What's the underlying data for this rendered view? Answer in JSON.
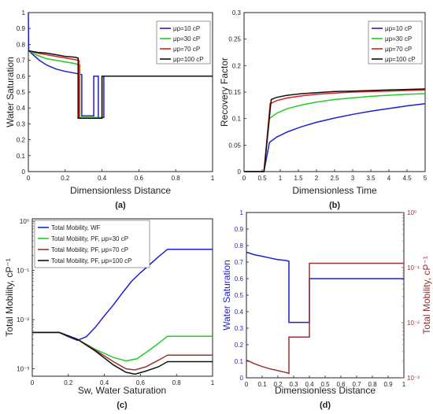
{
  "chart_data": [
    {
      "id": "a",
      "type": "line",
      "panel_label": "(a)",
      "xlabel": "Dimensionless Distance",
      "ylabel": "Water Saturation",
      "xlim": [
        0,
        1
      ],
      "ylim": [
        0,
        1
      ],
      "xticks": [
        "0",
        "0.2",
        "0.4",
        "0.6",
        "0.8",
        "1"
      ],
      "yticks": [
        "0",
        "0.1",
        "0.2",
        "0.3",
        "0.4",
        "0.5",
        "0.6",
        "0.7",
        "0.8",
        "0.9",
        "1"
      ],
      "legend": {
        "placement": "top-right"
      },
      "series": [
        {
          "name": "μp=10 cP",
          "color": "#1f1fd0",
          "points": [
            [
              0,
              1.0
            ],
            [
              0.002,
              0.76
            ],
            [
              0.02,
              0.74
            ],
            [
              0.06,
              0.7
            ],
            [
              0.1,
              0.67
            ],
            [
              0.15,
              0.645
            ],
            [
              0.2,
              0.63
            ],
            [
              0.25,
              0.62
            ],
            [
              0.29,
              0.61
            ],
            [
              0.29,
              0.35
            ],
            [
              0.355,
              0.35
            ],
            [
              0.355,
              0.6
            ],
            [
              0.38,
              0.6
            ],
            [
              0.38,
              0.34
            ],
            [
              0.41,
              0.34
            ],
            [
              0.41,
              0.6
            ],
            [
              1,
              0.6
            ]
          ]
        },
        {
          "name": "μp=30 cP",
          "color": "#22cc22",
          "points": [
            [
              0,
              0.76
            ],
            [
              0.05,
              0.73
            ],
            [
              0.1,
              0.71
            ],
            [
              0.15,
              0.7
            ],
            [
              0.2,
              0.69
            ],
            [
              0.25,
              0.68
            ],
            [
              0.28,
              0.67
            ],
            [
              0.28,
              0.34
            ],
            [
              0.4,
              0.34
            ],
            [
              0.4,
              0.6
            ],
            [
              1,
              0.6
            ]
          ]
        },
        {
          "name": "μp=70 cP",
          "color": "#dd2222",
          "points": [
            [
              0,
              0.76
            ],
            [
              0.05,
              0.745
            ],
            [
              0.1,
              0.735
            ],
            [
              0.15,
              0.725
            ],
            [
              0.2,
              0.715
            ],
            [
              0.25,
              0.705
            ],
            [
              0.275,
              0.7
            ],
            [
              0.275,
              0.335
            ],
            [
              0.4,
              0.335
            ],
            [
              0.4,
              0.6
            ],
            [
              1,
              0.6
            ]
          ]
        },
        {
          "name": "μp=100 cP",
          "color": "#111111",
          "points": [
            [
              0,
              0.76
            ],
            [
              0.05,
              0.75
            ],
            [
              0.1,
              0.745
            ],
            [
              0.15,
              0.735
            ],
            [
              0.2,
              0.725
            ],
            [
              0.25,
              0.72
            ],
            [
              0.27,
              0.715
            ],
            [
              0.27,
              0.335
            ],
            [
              0.4,
              0.335
            ],
            [
              0.4,
              0.6
            ],
            [
              1,
              0.6
            ]
          ]
        }
      ]
    },
    {
      "id": "b",
      "type": "line",
      "panel_label": "(b)",
      "xlabel": "Dimensionless Time",
      "ylabel": "Recovery Factor",
      "xlim": [
        0,
        5
      ],
      "ylim": [
        0,
        0.3
      ],
      "xticks": [
        "0",
        "0.5",
        "1",
        "1.5",
        "2",
        "2.5",
        "3",
        "3.5",
        "4",
        "4.5",
        "5"
      ],
      "yticks": [
        "0",
        "0.05",
        "0.1",
        "0.15",
        "0.2",
        "0.25",
        "0.3"
      ],
      "legend": {
        "placement": "top-right"
      },
      "series": [
        {
          "name": "μp=10 cP",
          "color": "#1f1fd0",
          "points": [
            [
              0,
              0
            ],
            [
              0.55,
              0
            ],
            [
              0.7,
              0.055
            ],
            [
              0.9,
              0.065
            ],
            [
              1.2,
              0.075
            ],
            [
              1.6,
              0.085
            ],
            [
              2,
              0.093
            ],
            [
              2.5,
              0.101
            ],
            [
              3,
              0.108
            ],
            [
              3.5,
              0.114
            ],
            [
              4,
              0.119
            ],
            [
              4.5,
              0.124
            ],
            [
              5,
              0.128
            ]
          ]
        },
        {
          "name": "μp=30 cP",
          "color": "#22cc22",
          "points": [
            [
              0,
              0
            ],
            [
              0.55,
              0
            ],
            [
              0.7,
              0.1
            ],
            [
              0.9,
              0.11
            ],
            [
              1.2,
              0.119
            ],
            [
              1.6,
              0.126
            ],
            [
              2,
              0.131
            ],
            [
              2.5,
              0.136
            ],
            [
              3,
              0.139
            ],
            [
              3.5,
              0.142
            ],
            [
              4,
              0.144
            ],
            [
              4.5,
              0.146
            ],
            [
              5,
              0.147
            ]
          ]
        },
        {
          "name": "μp=70 cP",
          "color": "#dd2222",
          "points": [
            [
              0,
              0
            ],
            [
              0.55,
              0
            ],
            [
              0.72,
              0.128
            ],
            [
              0.9,
              0.134
            ],
            [
              1.2,
              0.139
            ],
            [
              1.6,
              0.143
            ],
            [
              2,
              0.146
            ],
            [
              2.5,
              0.148
            ],
            [
              3,
              0.15
            ],
            [
              3.5,
              0.151
            ],
            [
              4,
              0.152
            ],
            [
              4.5,
              0.153
            ],
            [
              5,
              0.154
            ]
          ]
        },
        {
          "name": "μp=100 cP",
          "color": "#111111",
          "points": [
            [
              0,
              0
            ],
            [
              0.55,
              0
            ],
            [
              0.75,
              0.136
            ],
            [
              0.9,
              0.14
            ],
            [
              1.2,
              0.144
            ],
            [
              1.6,
              0.147
            ],
            [
              2,
              0.149
            ],
            [
              2.5,
              0.151
            ],
            [
              3,
              0.152
            ],
            [
              3.5,
              0.153
            ],
            [
              4,
              0.154
            ],
            [
              4.5,
              0.155
            ],
            [
              5,
              0.156
            ]
          ]
        }
      ]
    },
    {
      "id": "c",
      "type": "line",
      "panel_label": "(c)",
      "xlabel": "Sw, Water Saturation",
      "ylabel": "Total Mobility, cP⁻¹",
      "xlim": [
        0,
        1
      ],
      "yscale": "log",
      "ylog_range": [
        -3.15,
        0.05
      ],
      "xticks": [
        "0",
        "0.2",
        "0.4",
        "0.6",
        "0.8",
        "1"
      ],
      "yticks": [
        {
          "value": 0.001,
          "label": "10⁻³"
        },
        {
          "value": 0.01,
          "label": "10⁻²"
        },
        {
          "value": 0.1,
          "label": "10⁻¹"
        },
        {
          "value": 1,
          "label": "10⁰"
        }
      ],
      "legend": {
        "placement": "top-left"
      },
      "series": [
        {
          "name": "Total Mobility, WF",
          "color": "#1f1fd0",
          "points": [
            [
              0,
              0.0055
            ],
            [
              0.15,
              0.0055
            ],
            [
              0.2,
              0.0045
            ],
            [
              0.25,
              0.0038
            ],
            [
              0.3,
              0.0045
            ],
            [
              0.35,
              0.007
            ],
            [
              0.4,
              0.012
            ],
            [
              0.45,
              0.02
            ],
            [
              0.5,
              0.035
            ],
            [
              0.55,
              0.06
            ],
            [
              0.6,
              0.09
            ],
            [
              0.65,
              0.13
            ],
            [
              0.7,
              0.19
            ],
            [
              0.75,
              0.27
            ],
            [
              0.8,
              0.27
            ],
            [
              1,
              0.27
            ]
          ]
        },
        {
          "name": "Total Mobility, PF, μp=30 cP",
          "color": "#22cc22",
          "points": [
            [
              0,
              0.0055
            ],
            [
              0.15,
              0.0055
            ],
            [
              0.25,
              0.004
            ],
            [
              0.35,
              0.0025
            ],
            [
              0.45,
              0.0017
            ],
            [
              0.52,
              0.00145
            ],
            [
              0.58,
              0.0016
            ],
            [
              0.65,
              0.0024
            ],
            [
              0.7,
              0.0033
            ],
            [
              0.75,
              0.0046
            ],
            [
              1,
              0.0046
            ]
          ]
        },
        {
          "name": "Total Mobility, PF, μp=70 cP",
          "color": "#993333",
          "points": [
            [
              0,
              0.0055
            ],
            [
              0.15,
              0.0055
            ],
            [
              0.25,
              0.004
            ],
            [
              0.35,
              0.0024
            ],
            [
              0.45,
              0.0014
            ],
            [
              0.52,
              0.001
            ],
            [
              0.57,
              0.00095
            ],
            [
              0.63,
              0.0011
            ],
            [
              0.7,
              0.0015
            ],
            [
              0.75,
              0.0019
            ],
            [
              1,
              0.0019
            ]
          ]
        },
        {
          "name": "Total Mobility, PF, μp=100 cP",
          "color": "#111111",
          "points": [
            [
              0,
              0.0055
            ],
            [
              0.15,
              0.0055
            ],
            [
              0.25,
              0.004
            ],
            [
              0.35,
              0.0023
            ],
            [
              0.45,
              0.0012
            ],
            [
              0.52,
              0.00085
            ],
            [
              0.57,
              0.00078
            ],
            [
              0.63,
              0.0009
            ],
            [
              0.7,
              0.0011
            ],
            [
              0.75,
              0.0014
            ],
            [
              1,
              0.0014
            ]
          ]
        }
      ]
    },
    {
      "id": "d",
      "type": "line",
      "panel_label": "(d)",
      "xlabel": "Dimensionless Distance",
      "ylabel": "Water Saturation",
      "y2label": "Total Mobility, cP⁻¹",
      "xlim": [
        0,
        1
      ],
      "ylim": [
        0,
        1
      ],
      "y2scale": "log",
      "y2log_range": [
        -3,
        0
      ],
      "xticks": [
        "0",
        "0.1",
        "0.2",
        "0.3",
        "0.4",
        "0.5",
        "0.6",
        "0.7",
        "0.8",
        "0.9",
        "1"
      ],
      "yticks": [
        "0",
        "0.1",
        "0.2",
        "0.3",
        "0.4",
        "0.5",
        "0.6",
        "0.7",
        "0.8",
        "0.9",
        "1"
      ],
      "y2ticks": [
        {
          "value": 0.001,
          "label": "10⁻³"
        },
        {
          "value": 0.01,
          "label": "10⁻²"
        },
        {
          "value": 0.1,
          "label": "10⁻¹"
        },
        {
          "value": 1,
          "label": "10⁰"
        }
      ],
      "left_color": "#1f1fd0",
      "right_color": "#993333",
      "series": [
        {
          "name": "",
          "axis": "left",
          "color": "#1f1fd0",
          "points": [
            [
              0,
              0.76
            ],
            [
              0.05,
              0.745
            ],
            [
              0.1,
              0.735
            ],
            [
              0.15,
              0.725
            ],
            [
              0.2,
              0.715
            ],
            [
              0.25,
              0.71
            ],
            [
              0.27,
              0.705
            ],
            [
              0.27,
              0.335
            ],
            [
              0.4,
              0.335
            ],
            [
              0.4,
              0.6
            ],
            [
              1,
              0.6
            ]
          ]
        },
        {
          "name": "",
          "axis": "right",
          "color": "#993333",
          "points": [
            [
              0,
              0.0021
            ],
            [
              0.05,
              0.0018
            ],
            [
              0.1,
              0.0016
            ],
            [
              0.15,
              0.00145
            ],
            [
              0.2,
              0.00135
            ],
            [
              0.25,
              0.00125
            ],
            [
              0.27,
              0.0012
            ],
            [
              0.27,
              0.0055
            ],
            [
              0.4,
              0.0055
            ],
            [
              0.4,
              0.12
            ],
            [
              1,
              0.12
            ]
          ]
        }
      ]
    }
  ]
}
